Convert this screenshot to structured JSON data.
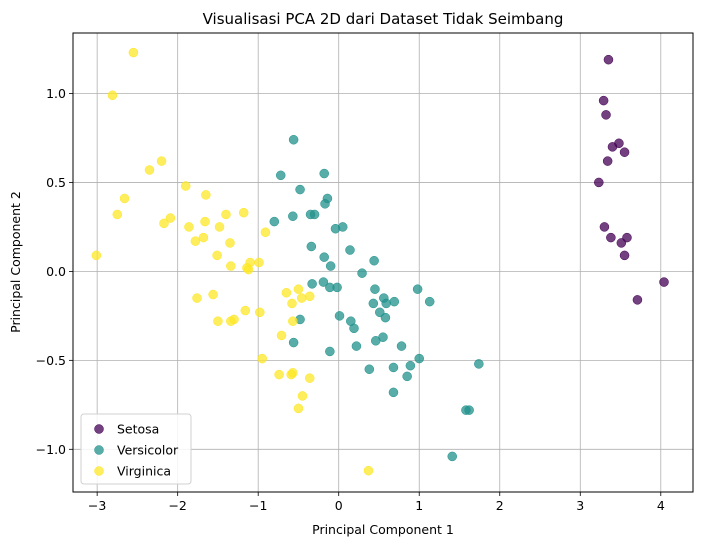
{
  "chart_data": {
    "type": "scatter",
    "title": "Visualisasi PCA 2D dari Dataset Tidak Seimbang",
    "xlabel": "Principal Component 1",
    "ylabel": "Principal Component 2",
    "xlim": [
      -3.3,
      4.4
    ],
    "ylim": [
      -1.24,
      1.34
    ],
    "xticks": [
      -3,
      -2,
      -1,
      0,
      1,
      2,
      3,
      4
    ],
    "xtick_labels": [
      "−3",
      "−2",
      "−1",
      "0",
      "1",
      "2",
      "3",
      "4"
    ],
    "yticks": [
      -1.0,
      -0.5,
      0.0,
      0.5,
      1.0
    ],
    "ytick_labels": [
      "−1.0",
      "−0.5",
      "0.0",
      "0.5",
      "1.0"
    ],
    "grid": true,
    "legend_position": "lower-left",
    "series": [
      {
        "name": "Setosa",
        "color": "#440154",
        "points": [
          [
            3.35,
            1.19
          ],
          [
            3.29,
            0.96
          ],
          [
            3.32,
            0.88
          ],
          [
            3.48,
            0.72
          ],
          [
            3.4,
            0.7
          ],
          [
            3.55,
            0.67
          ],
          [
            3.34,
            0.62
          ],
          [
            3.23,
            0.5
          ],
          [
            3.3,
            0.25
          ],
          [
            3.38,
            0.19
          ],
          [
            3.58,
            0.19
          ],
          [
            3.51,
            0.16
          ],
          [
            3.55,
            0.09
          ],
          [
            3.71,
            -0.16
          ],
          [
            4.04,
            -0.06
          ]
        ]
      },
      {
        "name": "Versicolor",
        "color": "#21918c",
        "points": [
          [
            -0.56,
            0.74
          ],
          [
            -0.72,
            0.54
          ],
          [
            -0.18,
            0.55
          ],
          [
            -0.48,
            0.46
          ],
          [
            -0.14,
            0.41
          ],
          [
            -0.17,
            0.38
          ],
          [
            -0.3,
            0.32
          ],
          [
            -0.35,
            0.32
          ],
          [
            -0.57,
            0.31
          ],
          [
            -0.8,
            0.28
          ],
          [
            0.05,
            0.25
          ],
          [
            -0.04,
            0.24
          ],
          [
            0.14,
            0.12
          ],
          [
            -0.34,
            0.14
          ],
          [
            -0.18,
            0.08
          ],
          [
            0.44,
            0.06
          ],
          [
            -0.1,
            0.03
          ],
          [
            0.29,
            -0.01
          ],
          [
            -0.19,
            -0.06
          ],
          [
            -0.33,
            -0.07
          ],
          [
            -0.11,
            -0.09
          ],
          [
            -0.02,
            -0.09
          ],
          [
            0.45,
            -0.1
          ],
          [
            0.98,
            -0.1
          ],
          [
            0.56,
            -0.15
          ],
          [
            0.43,
            -0.18
          ],
          [
            0.59,
            -0.18
          ],
          [
            0.69,
            -0.17
          ],
          [
            1.13,
            -0.17
          ],
          [
            0.51,
            -0.23
          ],
          [
            0.58,
            -0.26
          ],
          [
            0.01,
            -0.25
          ],
          [
            0.15,
            -0.28
          ],
          [
            0.19,
            -0.32
          ],
          [
            -0.48,
            -0.27
          ],
          [
            0.78,
            -0.42
          ],
          [
            0.22,
            -0.42
          ],
          [
            -0.56,
            -0.4
          ],
          [
            0.46,
            -0.39
          ],
          [
            0.55,
            -0.37
          ],
          [
            -0.11,
            -0.45
          ],
          [
            1.0,
            -0.49
          ],
          [
            0.89,
            -0.53
          ],
          [
            0.38,
            -0.55
          ],
          [
            0.68,
            -0.54
          ],
          [
            0.85,
            -0.59
          ],
          [
            1.74,
            -0.52
          ],
          [
            0.68,
            -0.68
          ],
          [
            1.58,
            -0.78
          ],
          [
            1.62,
            -0.78
          ],
          [
            1.41,
            -1.04
          ]
        ]
      },
      {
        "name": "Virginica",
        "color": "#fde725",
        "points": [
          [
            -2.55,
            1.23
          ],
          [
            -2.81,
            0.99
          ],
          [
            -2.2,
            0.62
          ],
          [
            -2.35,
            0.57
          ],
          [
            -1.65,
            0.43
          ],
          [
            -1.9,
            0.48
          ],
          [
            -2.66,
            0.41
          ],
          [
            -2.75,
            0.32
          ],
          [
            -2.09,
            0.3
          ],
          [
            -2.17,
            0.27
          ],
          [
            -1.66,
            0.28
          ],
          [
            -1.4,
            0.32
          ],
          [
            -1.18,
            0.33
          ],
          [
            -1.48,
            0.25
          ],
          [
            -1.86,
            0.25
          ],
          [
            -1.68,
            0.19
          ],
          [
            -1.78,
            0.17
          ],
          [
            -0.91,
            0.22
          ],
          [
            -1.35,
            0.16
          ],
          [
            -1.51,
            0.09
          ],
          [
            -3.01,
            0.09
          ],
          [
            -1.1,
            0.05
          ],
          [
            -0.99,
            0.05
          ],
          [
            -1.34,
            0.03
          ],
          [
            -1.14,
            0.02
          ],
          [
            -1.12,
            0.01
          ],
          [
            -0.65,
            -0.12
          ],
          [
            -0.5,
            -0.1
          ],
          [
            -0.46,
            -0.15
          ],
          [
            -0.36,
            -0.14
          ],
          [
            -1.76,
            -0.15
          ],
          [
            -1.56,
            -0.13
          ],
          [
            -0.58,
            -0.18
          ],
          [
            -0.98,
            -0.23
          ],
          [
            -1.16,
            -0.22
          ],
          [
            -1.3,
            -0.27
          ],
          [
            -1.34,
            -0.28
          ],
          [
            -1.5,
            -0.28
          ],
          [
            -0.57,
            -0.28
          ],
          [
            -0.71,
            -0.36
          ],
          [
            -0.95,
            -0.49
          ],
          [
            -0.74,
            -0.58
          ],
          [
            -0.57,
            -0.57
          ],
          [
            -0.59,
            -0.58
          ],
          [
            -0.36,
            -0.6
          ],
          [
            -0.45,
            -0.7
          ],
          [
            -0.5,
            -0.77
          ],
          [
            0.37,
            -1.12
          ]
        ]
      }
    ]
  }
}
